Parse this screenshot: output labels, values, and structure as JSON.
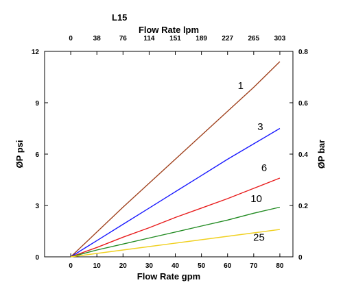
{
  "chart_data": {
    "type": "line",
    "title": "L15",
    "xlabel": "Flow Rate gpm",
    "x2label": "Flow Rate lpm",
    "ylabel": "ØP psi",
    "y2label": "ØP bar",
    "xlim": [
      -10,
      85
    ],
    "ylim": [
      0,
      12
    ],
    "y2lim": [
      0,
      0.8
    ],
    "x_ticks": [
      0,
      10,
      20,
      30,
      40,
      50,
      60,
      70,
      80
    ],
    "y_ticks": [
      0,
      3,
      6,
      9,
      12
    ],
    "y2_ticks": [
      0,
      0.2,
      0.4,
      0.6,
      0.8
    ],
    "x2_ticks": [
      {
        "gpm": 0,
        "label": "0"
      },
      {
        "gpm": 10,
        "label": "38"
      },
      {
        "gpm": 20,
        "label": "76"
      },
      {
        "gpm": 30,
        "label": "114"
      },
      {
        "gpm": 40,
        "label": "151"
      },
      {
        "gpm": 50,
        "label": "189"
      },
      {
        "gpm": 60,
        "label": "227"
      },
      {
        "gpm": 70,
        "label": "265"
      },
      {
        "gpm": 80,
        "label": "303"
      }
    ],
    "grid": false,
    "series": [
      {
        "name": "1",
        "color": "#a0421e",
        "label_at": [
          65,
          9.8
        ],
        "x": [
          0,
          10,
          20,
          30,
          40,
          50,
          60,
          70,
          80
        ],
        "y": [
          0,
          1.45,
          2.9,
          4.3,
          5.7,
          7.1,
          8.5,
          9.9,
          11.4
        ]
      },
      {
        "name": "3",
        "color": "#1a1aff",
        "label_at": [
          72.5,
          7.4
        ],
        "x": [
          0,
          10,
          20,
          30,
          40,
          50,
          60,
          70,
          80
        ],
        "y": [
          0,
          0.95,
          1.9,
          2.85,
          3.8,
          4.75,
          5.7,
          6.6,
          7.5
        ]
      },
      {
        "name": "6",
        "color": "#e81c1c",
        "label_at": [
          74,
          5.0
        ],
        "x": [
          0,
          10,
          20,
          30,
          40,
          50,
          60,
          70,
          80
        ],
        "y": [
          0,
          0.55,
          1.15,
          1.7,
          2.3,
          2.85,
          3.4,
          4.0,
          4.6
        ]
      },
      {
        "name": "10",
        "color": "#228b22",
        "label_at": [
          71,
          3.2
        ],
        "x": [
          0,
          10,
          20,
          30,
          40,
          50,
          60,
          70,
          80
        ],
        "y": [
          0,
          0.4,
          0.75,
          1.1,
          1.45,
          1.8,
          2.15,
          2.55,
          2.9
        ]
      },
      {
        "name": "25",
        "color": "#f0d020",
        "label_at": [
          72,
          0.95
        ],
        "x": [
          0,
          10,
          20,
          30,
          40,
          50,
          60,
          70,
          80
        ],
        "y": [
          0,
          0.2,
          0.4,
          0.6,
          0.8,
          1.0,
          1.2,
          1.4,
          1.6
        ]
      }
    ]
  }
}
